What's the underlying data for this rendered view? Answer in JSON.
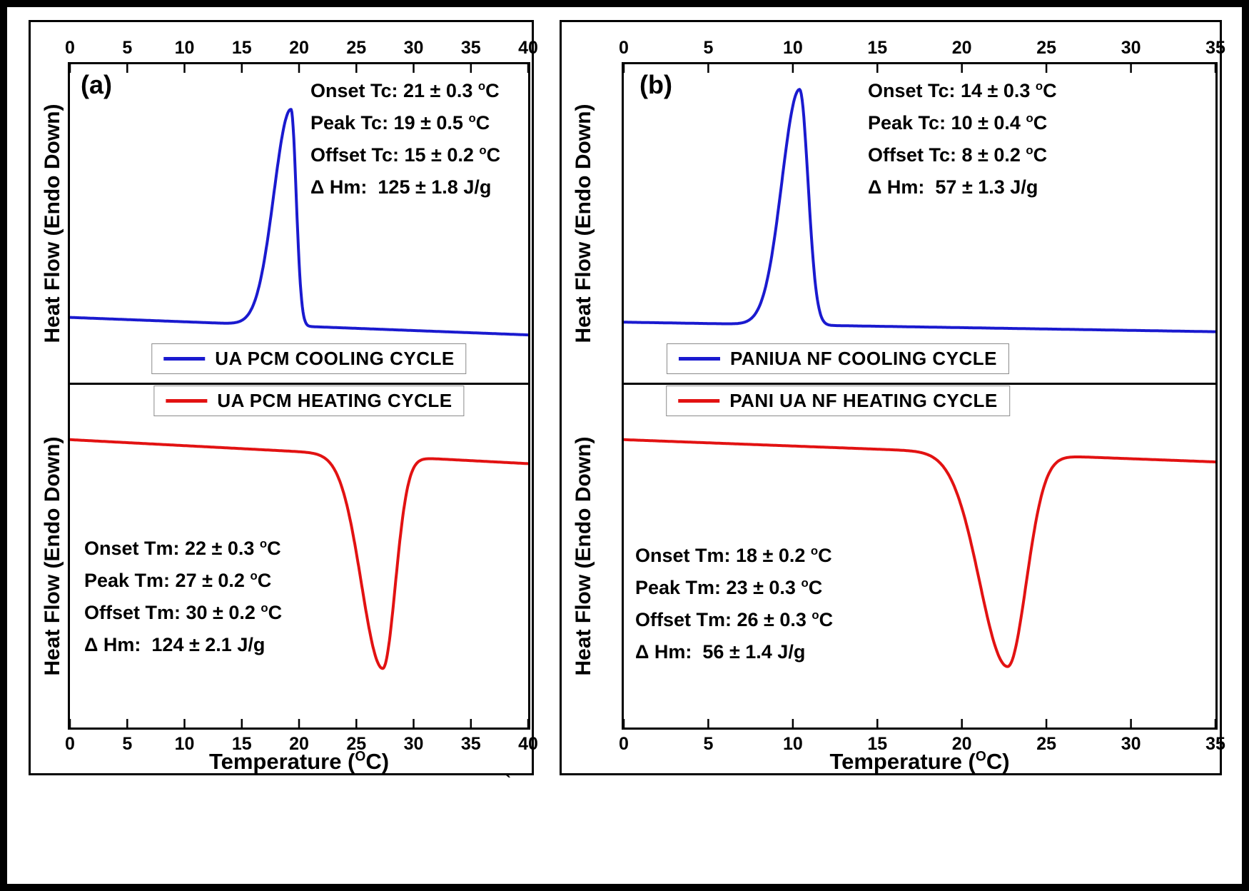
{
  "page": {
    "background": "#ffffff",
    "frame_color": "#000000",
    "curve_blue": "#1a1acf",
    "curve_red": "#e21212"
  },
  "stray_mark": "`",
  "chart_data": [
    {
      "panel_label": "(a)",
      "type": "line",
      "xlabel": "Temperature (^OC)",
      "ylabel": "Heat Flow (Endo Down)",
      "x_range": [
        0,
        40
      ],
      "x_ticks": [
        0,
        5,
        10,
        15,
        20,
        25,
        30,
        35,
        40
      ],
      "grid": false,
      "legend": {
        "cooling": "UA PCM COOLING CYCLE",
        "heating": "UA PCM HEATING CYCLE"
      },
      "annotations": {
        "cooling": [
          "Onset Tc: 21 ± 0.3 ^oC",
          "Peak Tc: 19 ± 0.5 ^oC",
          "Offset Tc: 15 ± 0.2 ^oC",
          "Δ Hm:  125 ± 1.8 J/g"
        ],
        "heating": [
          "Onset Tm: 22 ± 0.3 ^oC",
          "Peak Tm: 27 ± 0.2 ^oC",
          "Offset Tm: 30 ± 0.2 ^oC",
          "Δ Hm:  124 ± 2.1 J/g"
        ]
      },
      "series": [
        {
          "id": "cooling",
          "name": "UA PCM COOLING CYCLE",
          "color": "#1a1acf",
          "peak_kind": "crystallization-exotherm",
          "onset_C": 21,
          "peak_C": 19,
          "offset_C": 15,
          "enthalpy_J_per_g": 125,
          "shape": {
            "direction": "up",
            "center": 19.3,
            "sigma_left": 1.5,
            "sigma_right": 0.45,
            "amplitude": 0.68,
            "baseline_start": 0.795,
            "baseline_end": 0.85
          }
        },
        {
          "id": "heating",
          "name": "UA PCM HEATING CYCLE",
          "color": "#e21212",
          "peak_kind": "melting-endotherm",
          "onset_C": 22,
          "peak_C": 27,
          "offset_C": 30,
          "enthalpy_J_per_g": 124,
          "shape": {
            "direction": "down",
            "center": 27.3,
            "sigma_left": 1.85,
            "sigma_right": 1.1,
            "amplitude": 0.62,
            "baseline_start": 0.16,
            "baseline_end": 0.23
          }
        }
      ]
    },
    {
      "panel_label": "(b)",
      "type": "line",
      "xlabel": "Temperature (^OC)",
      "ylabel": "Heat Flow (Endo Down)",
      "x_range": [
        0,
        35
      ],
      "x_ticks": [
        0,
        5,
        10,
        15,
        20,
        25,
        30,
        35
      ],
      "grid": false,
      "legend": {
        "cooling": "PANIUA NF COOLING CYCLE",
        "heating": "PANI UA NF HEATING CYCLE"
      },
      "annotations": {
        "cooling": [
          "Onset Tc: 14 ± 0.3 ^oC",
          "Peak Tc: 10 ± 0.4 ^oC",
          "Offset Tc: 8 ± 0.2 ^oC",
          "Δ Hm:  57 ± 1.3 J/g"
        ],
        "heating": [
          "Onset Tm: 18 ± 0.2 ^oC",
          "Peak Tm: 23 ± 0.3 ^oC",
          "Offset Tm: 26 ± 0.3 ^oC",
          "Δ Hm:  56 ± 1.4 J/g"
        ]
      },
      "series": [
        {
          "id": "cooling",
          "name": "PANIUA NF COOLING CYCLE",
          "color": "#1a1acf",
          "peak_kind": "crystallization-exotherm",
          "onset_C": 14,
          "peak_C": 10,
          "offset_C": 8,
          "enthalpy_J_per_g": 57,
          "shape": {
            "direction": "up",
            "center": 10.4,
            "sigma_left": 1.05,
            "sigma_right": 0.5,
            "amplitude": 0.74,
            "baseline_start": 0.81,
            "baseline_end": 0.84
          }
        },
        {
          "id": "heating",
          "name": "PANI UA NF HEATING CYCLE",
          "color": "#e21212",
          "peak_kind": "melting-endotherm",
          "onset_C": 18,
          "peak_C": 23,
          "offset_C": 26,
          "enthalpy_J_per_g": 56,
          "shape": {
            "direction": "down",
            "center": 22.7,
            "sigma_left": 1.65,
            "sigma_right": 1.1,
            "amplitude": 0.62,
            "baseline_start": 0.16,
            "baseline_end": 0.225
          }
        }
      ]
    }
  ]
}
